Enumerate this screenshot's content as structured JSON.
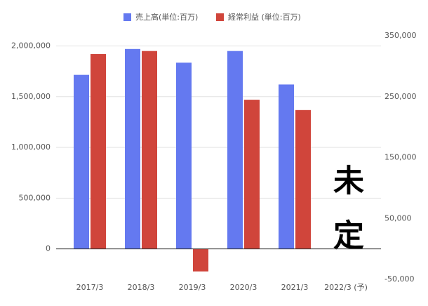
{
  "chart_data": {
    "type": "bar",
    "categories": [
      "2017/3",
      "2018/3",
      "2019/3",
      "2020/3",
      "2021/3",
      "2022/3 (予)"
    ],
    "series": [
      {
        "name": "売上高(単位:百万)",
        "color": "#6479f0",
        "values": [
          1715000,
          1970000,
          1835000,
          1950000,
          1620000,
          null
        ]
      },
      {
        "name": "経常利益 (単位:百万)",
        "color": "#d0453b",
        "axis": "y2",
        "values": [
          320000,
          325000,
          -37000,
          245000,
          228000,
          null
        ]
      }
    ],
    "ylim": [
      -300000,
      2100000
    ],
    "yticks": [
      {
        "value": 0,
        "label": "0"
      },
      {
        "value": 500000,
        "label": "500,000"
      },
      {
        "value": 1000000,
        "label": "1,000,000"
      },
      {
        "value": 1500000,
        "label": "1,500,000"
      },
      {
        "value": 2000000,
        "label": "2,000,000"
      }
    ],
    "y2lim": [
      -50000,
      350000
    ],
    "y2ticks": [
      {
        "value": -50000,
        "label": "-50,000"
      },
      {
        "value": 50000,
        "label": "50,000"
      },
      {
        "value": 150000,
        "label": "150,000"
      },
      {
        "value": 250000,
        "label": "250,000"
      },
      {
        "value": 350000,
        "label": "350,000"
      }
    ],
    "annotation": "未定",
    "grid": true,
    "legend": "top"
  }
}
